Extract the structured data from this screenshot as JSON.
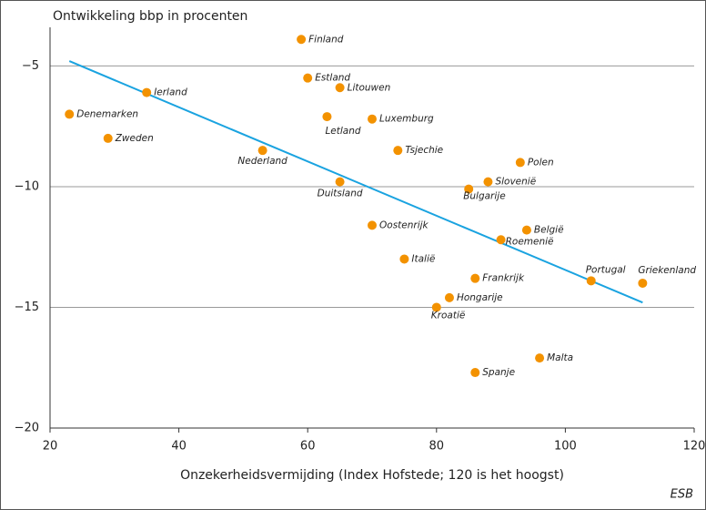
{
  "chart_data": {
    "type": "scatter",
    "title": "Ontwikkeling bbp in procenten",
    "x_label": "Onzekerheidsvermijding (Index Hofstede; 120 is het hoogst)",
    "source": "ESB",
    "color": "#f39200",
    "labels": [
      "Finland",
      "Estland",
      "Litouwen",
      "Ierland",
      "Denemarken",
      "Letland",
      "Luxemburg",
      "Zweden",
      "Nederland",
      "Tsjechie",
      "Polen",
      "Slovenië",
      "Duitsland",
      "Bulgarije",
      "Oostenrijk",
      "België",
      "Roemenië",
      "Italië",
      "Frankrijk",
      "Portugal",
      "Griekenland",
      "Hongarije",
      "Kroatië",
      "Malta",
      "Spanje"
    ],
    "x": [
      59,
      60,
      65,
      35,
      23,
      63,
      70,
      29,
      53,
      74,
      93,
      88,
      65,
      85,
      70,
      94,
      90,
      75,
      86,
      104,
      112,
      82,
      80,
      96,
      86
    ],
    "values": [
      -3.9,
      -5.5,
      -5.9,
      -6.1,
      -7.0,
      -7.1,
      -7.2,
      -8.0,
      -8.5,
      -8.5,
      -9.0,
      -9.8,
      -9.8,
      -10.1,
      -11.6,
      -11.8,
      -12.2,
      -13.0,
      -13.8,
      -13.9,
      -14.0,
      -14.6,
      -15.0,
      -17.1,
      -17.7
    ],
    "trendline": {
      "x": [
        23,
        112
      ],
      "values": [
        -4.8,
        -14.8
      ],
      "color": "#1aa3e0"
    },
    "xlim": [
      20,
      120
    ],
    "xticks": [
      20,
      40,
      60,
      80,
      100,
      120
    ],
    "ylim": [
      -20,
      -3.4
    ],
    "yticks": [
      {
        "value": -5,
        "label": "−5"
      },
      {
        "value": -10,
        "label": "−10"
      },
      {
        "value": -15,
        "label": "−15"
      },
      {
        "value": -20,
        "label": "−20"
      }
    ],
    "grid": true
  }
}
